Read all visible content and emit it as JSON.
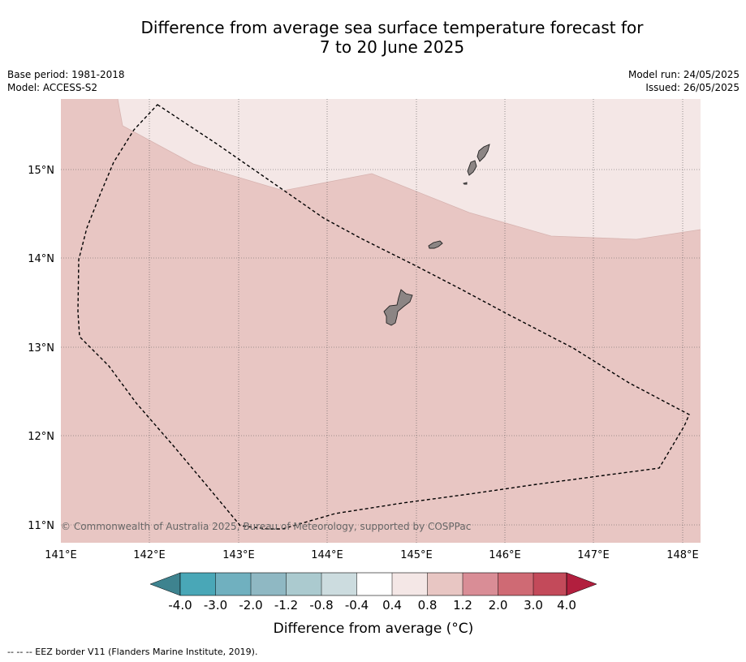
{
  "title": {
    "line1": "Difference from average sea surface temperature forecast for",
    "line2": "7 to 20 June 2025"
  },
  "meta_left": {
    "base_period": "Base period: 1981-2018",
    "model": "Model: ACCESS-S2"
  },
  "meta_right": {
    "model_run": "Model run: 24/05/2025",
    "issued": "Issued: 26/05/2025"
  },
  "map": {
    "lon_range": [
      141.0,
      148.2
    ],
    "lat_range": [
      10.8,
      15.8
    ],
    "lon_ticks": [
      "141°E",
      "142°E",
      "143°E",
      "144°E",
      "145°E",
      "146°E",
      "147°E",
      "148°E"
    ],
    "lat_ticks": [
      "15°N",
      "14°N",
      "13°N",
      "12°N",
      "11°N"
    ],
    "copyright": "© Commonwealth of Australia 2025, Bureau of Meteorology, supported by COSPPac",
    "anomaly_classes": [
      {
        "range": "0.8 to 1.2",
        "color": "#e8c6c3",
        "area": "south and west"
      },
      {
        "range": "0.4 to 0.8",
        "color": "#f4e7e6",
        "area": "north-east"
      }
    ],
    "land_color": "#8c8584",
    "eez_style": "dashed"
  },
  "colorbar": {
    "label": "Difference from average (°C)",
    "ticks": [
      "-4.0",
      "-3.0",
      "-2.0",
      "-1.2",
      "-0.8",
      "-0.4",
      "0.4",
      "0.8",
      "1.2",
      "2.0",
      "3.0",
      "4.0"
    ],
    "colors": [
      "#49a7b7",
      "#70b0bf",
      "#8fb8c3",
      "#abcacf",
      "#ccdcdf",
      "#ffffff",
      "#f4e7e6",
      "#e8c6c3",
      "#d98d96",
      "#cf6a74",
      "#c34a5a"
    ],
    "under_color": "#3e838f",
    "over_color": "#b21f3e"
  },
  "footnote": "--  --  -- EEZ border V11 (Flanders Marine Institute, 2019)."
}
